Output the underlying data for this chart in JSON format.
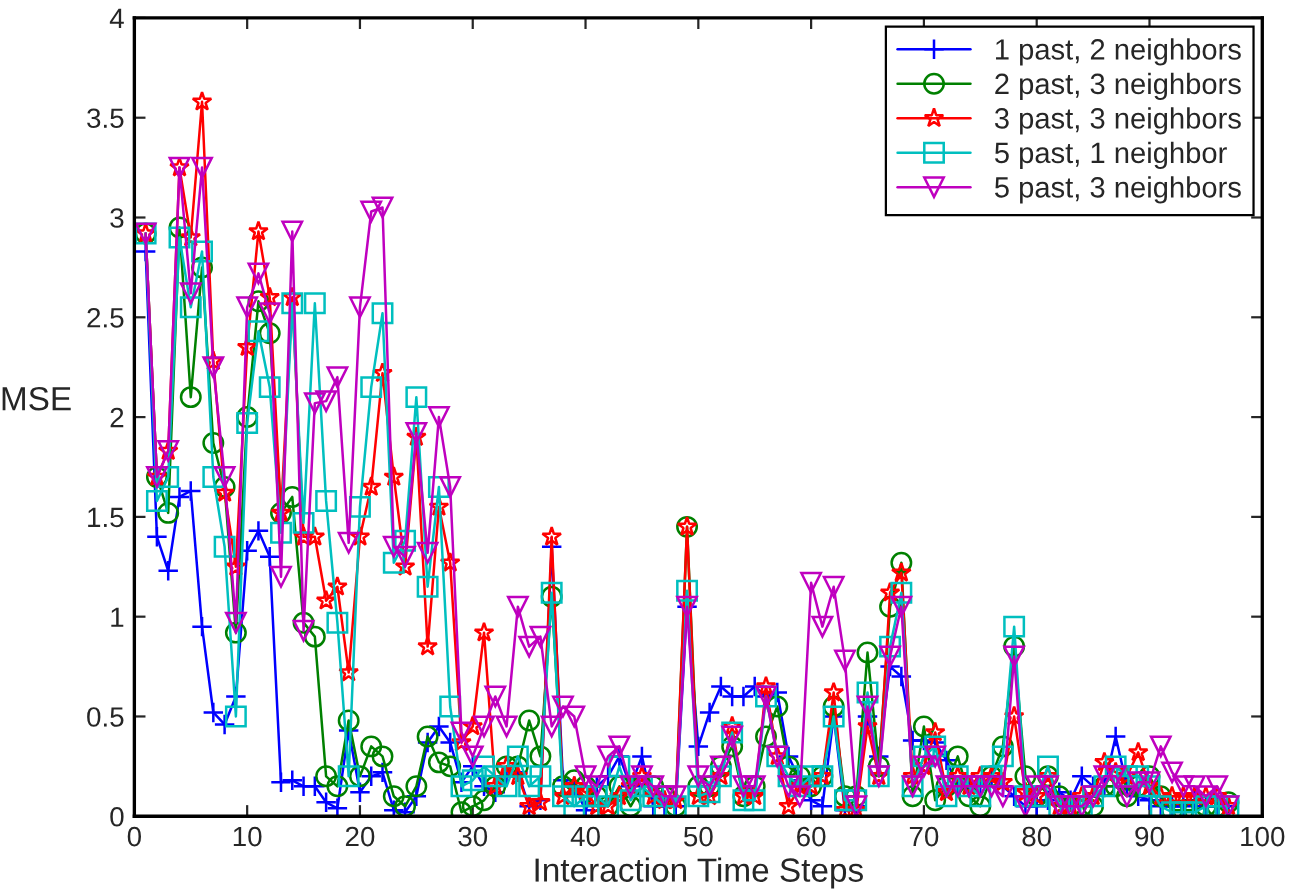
{
  "chart_data": {
    "type": "line",
    "xlabel": "Interaction Time Steps",
    "ylabel": "MSE",
    "x": [
      1,
      2,
      3,
      4,
      5,
      6,
      7,
      8,
      9,
      10,
      11,
      12,
      13,
      14,
      15,
      16,
      17,
      18,
      19,
      20,
      21,
      22,
      23,
      24,
      25,
      26,
      27,
      28,
      29,
      30,
      31,
      32,
      33,
      34,
      35,
      36,
      37,
      38,
      39,
      40,
      41,
      42,
      43,
      44,
      45,
      46,
      47,
      48,
      49,
      50,
      51,
      52,
      53,
      54,
      55,
      56,
      57,
      58,
      59,
      60,
      61,
      62,
      63,
      64,
      65,
      66,
      67,
      68,
      69,
      70,
      71,
      72,
      73,
      74,
      75,
      76,
      77,
      78,
      79,
      80,
      81,
      82,
      83,
      84,
      85,
      86,
      87,
      88,
      89,
      90,
      91,
      92,
      93,
      94,
      95,
      96,
      97
    ],
    "xlim": [
      0,
      100
    ],
    "xticks": [
      0,
      10,
      20,
      30,
      40,
      50,
      60,
      70,
      80,
      90,
      100
    ],
    "ylim": [
      0,
      4
    ],
    "yticks": [
      0,
      0.5,
      1,
      1.5,
      2,
      2.5,
      3,
      3.5,
      4
    ],
    "legend": "top right",
    "grid": false,
    "series": [
      {
        "name": "1 past, 2 neighbors",
        "color": "#0000ff",
        "marker": "cross",
        "values": [
          2.83,
          1.4,
          1.23,
          1.6,
          1.63,
          0.95,
          0.52,
          0.46,
          0.6,
          1.33,
          1.43,
          1.3,
          0.17,
          0.18,
          0.15,
          0.15,
          0.07,
          0.04,
          0.43,
          0.12,
          0.2,
          0.22,
          0.03,
          0.02,
          0.1,
          0.37,
          0.45,
          0.37,
          0.17,
          0.25,
          0.15,
          0.12,
          0.2,
          0.22,
          0.05,
          0.08,
          1.35,
          0.18,
          0.15,
          0.03,
          0.15,
          0.2,
          0.3,
          0.15,
          0.3,
          0.05,
          0.05,
          0.05,
          1.05,
          0.35,
          0.52,
          0.65,
          0.6,
          0.6,
          0.65,
          0.6,
          0.62,
          0.3,
          0.18,
          0.08,
          0.05,
          0.5,
          0.03,
          0.05,
          0.5,
          0.3,
          0.75,
          0.7,
          0.38,
          0.38,
          0.37,
          0.28,
          0.15,
          0.15,
          0.15,
          0.2,
          0.15,
          0.1,
          0.05,
          0.05,
          0.08,
          0.12,
          0.08,
          0.2,
          0.15,
          0.15,
          0.4,
          0.15,
          0.1,
          0.08,
          0.05,
          0.05,
          0.05,
          0.08,
          0.05,
          0.05,
          0.05
        ]
      },
      {
        "name": "2 past, 3 neighbors",
        "color": "#008000",
        "marker": "circle",
        "values": [
          2.92,
          1.7,
          1.52,
          2.95,
          2.1,
          2.75,
          1.87,
          1.65,
          0.92,
          2.0,
          2.58,
          2.42,
          1.52,
          1.6,
          0.97,
          0.9,
          0.2,
          0.15,
          0.48,
          0.2,
          0.35,
          0.3,
          0.1,
          0.05,
          0.15,
          0.4,
          0.27,
          0.25,
          0.02,
          0.05,
          0.08,
          0.15,
          0.25,
          0.25,
          0.48,
          0.3,
          1.1,
          0.15,
          0.18,
          0.15,
          0.1,
          0.05,
          0.15,
          0.05,
          0.15,
          0.15,
          0.1,
          0.05,
          1.45,
          0.15,
          0.15,
          0.25,
          0.35,
          0.1,
          0.15,
          0.4,
          0.55,
          0.25,
          0.2,
          0.15,
          0.2,
          0.55,
          0.1,
          0.1,
          0.82,
          0.25,
          1.05,
          1.27,
          0.1,
          0.45,
          0.08,
          0.15,
          0.3,
          0.1,
          0.05,
          0.2,
          0.35,
          0.85,
          0.2,
          0.1,
          0.2,
          0.1,
          0.05,
          0.05,
          0.05,
          0.15,
          0.15,
          0.1,
          0.15,
          0.2,
          0.1,
          0.03,
          0.03,
          0.03,
          0.05,
          0.05,
          0.07
        ]
      },
      {
        "name": "3 past, 3 neighbors",
        "color": "#ff0000",
        "marker": "star",
        "values": [
          2.92,
          1.7,
          1.83,
          3.25,
          2.9,
          3.58,
          2.28,
          1.62,
          1.25,
          2.35,
          2.93,
          2.6,
          1.52,
          2.6,
          1.4,
          1.4,
          1.08,
          1.15,
          0.72,
          1.4,
          1.65,
          2.22,
          1.7,
          1.25,
          1.9,
          0.85,
          1.55,
          1.27,
          0.37,
          0.45,
          0.92,
          0.15,
          0.25,
          0.2,
          0.05,
          0.07,
          1.4,
          0.1,
          0.15,
          0.12,
          0.05,
          0.05,
          0.1,
          0.15,
          0.2,
          0.1,
          0.08,
          0.08,
          1.45,
          0.1,
          0.1,
          0.2,
          0.45,
          0.1,
          0.1,
          0.65,
          0.3,
          0.05,
          0.15,
          0.15,
          0.2,
          0.62,
          0.03,
          0.03,
          0.45,
          0.2,
          1.12,
          1.22,
          0.2,
          0.25,
          0.42,
          0.12,
          0.2,
          0.15,
          0.2,
          0.2,
          0.17,
          0.5,
          0.12,
          0.1,
          0.2,
          0.05,
          0.05,
          0.1,
          0.1,
          0.27,
          0.22,
          0.2,
          0.32,
          0.15,
          0.1,
          0.1,
          0.1,
          0.1,
          0.1,
          0.1,
          0.05
        ]
      },
      {
        "name": "5 past, 1 neighbor",
        "color": "#00bfbf",
        "marker": "square",
        "values": [
          2.92,
          1.58,
          1.7,
          2.9,
          2.55,
          2.83,
          1.7,
          1.35,
          0.5,
          1.97,
          2.43,
          2.15,
          1.42,
          2.57,
          1.47,
          2.57,
          1.58,
          0.97,
          0.2,
          1.55,
          2.15,
          2.52,
          1.27,
          1.38,
          2.1,
          1.15,
          1.65,
          0.55,
          0.15,
          0.18,
          0.25,
          0.2,
          0.15,
          0.3,
          0.15,
          0.2,
          1.12,
          0.1,
          0.05,
          0.1,
          0.1,
          0.05,
          0.25,
          0.08,
          0.15,
          0.1,
          0.05,
          0.05,
          1.13,
          0.1,
          0.12,
          0.2,
          0.42,
          0.08,
          0.08,
          0.6,
          0.3,
          0.2,
          0.15,
          0.2,
          0.2,
          0.5,
          0.08,
          0.08,
          0.62,
          0.2,
          0.85,
          1.12,
          0.15,
          0.3,
          0.35,
          0.1,
          0.2,
          0.15,
          0.1,
          0.2,
          0.3,
          0.95,
          0.1,
          0.1,
          0.25,
          0.05,
          0.05,
          0.05,
          0.1,
          0.15,
          0.25,
          0.2,
          0.2,
          0.15,
          0.05,
          0.02,
          0.02,
          0.02,
          0.05,
          0.05,
          0.05
        ]
      },
      {
        "name": "5 past, 3 neighbors",
        "color": "#bf00bf",
        "marker": "triangle",
        "values": [
          2.92,
          1.7,
          1.83,
          3.25,
          2.62,
          3.25,
          2.25,
          1.7,
          0.97,
          2.55,
          2.72,
          2.52,
          1.2,
          2.93,
          0.93,
          2.07,
          2.08,
          2.2,
          1.37,
          2.55,
          3.03,
          3.05,
          1.35,
          1.3,
          1.92,
          1.32,
          2.0,
          1.65,
          0.42,
          0.3,
          0.45,
          0.6,
          0.45,
          1.05,
          0.85,
          0.9,
          0.45,
          0.55,
          0.5,
          0.2,
          0.15,
          0.3,
          0.35,
          0.15,
          0.2,
          0.15,
          0.1,
          0.1,
          1.05,
          0.2,
          0.15,
          0.25,
          0.4,
          0.15,
          0.15,
          0.6,
          0.3,
          0.15,
          0.1,
          1.17,
          0.95,
          1.15,
          0.78,
          0.05,
          0.55,
          0.2,
          0.8,
          1.05,
          0.15,
          0.25,
          0.3,
          0.15,
          0.15,
          0.15,
          0.15,
          0.15,
          0.1,
          0.8,
          0.05,
          0.15,
          0.15,
          0.05,
          0.05,
          0.05,
          0.1,
          0.2,
          0.2,
          0.1,
          0.17,
          0.17,
          0.35,
          0.22,
          0.15,
          0.15,
          0.1,
          0.15,
          0.05
        ]
      }
    ]
  }
}
